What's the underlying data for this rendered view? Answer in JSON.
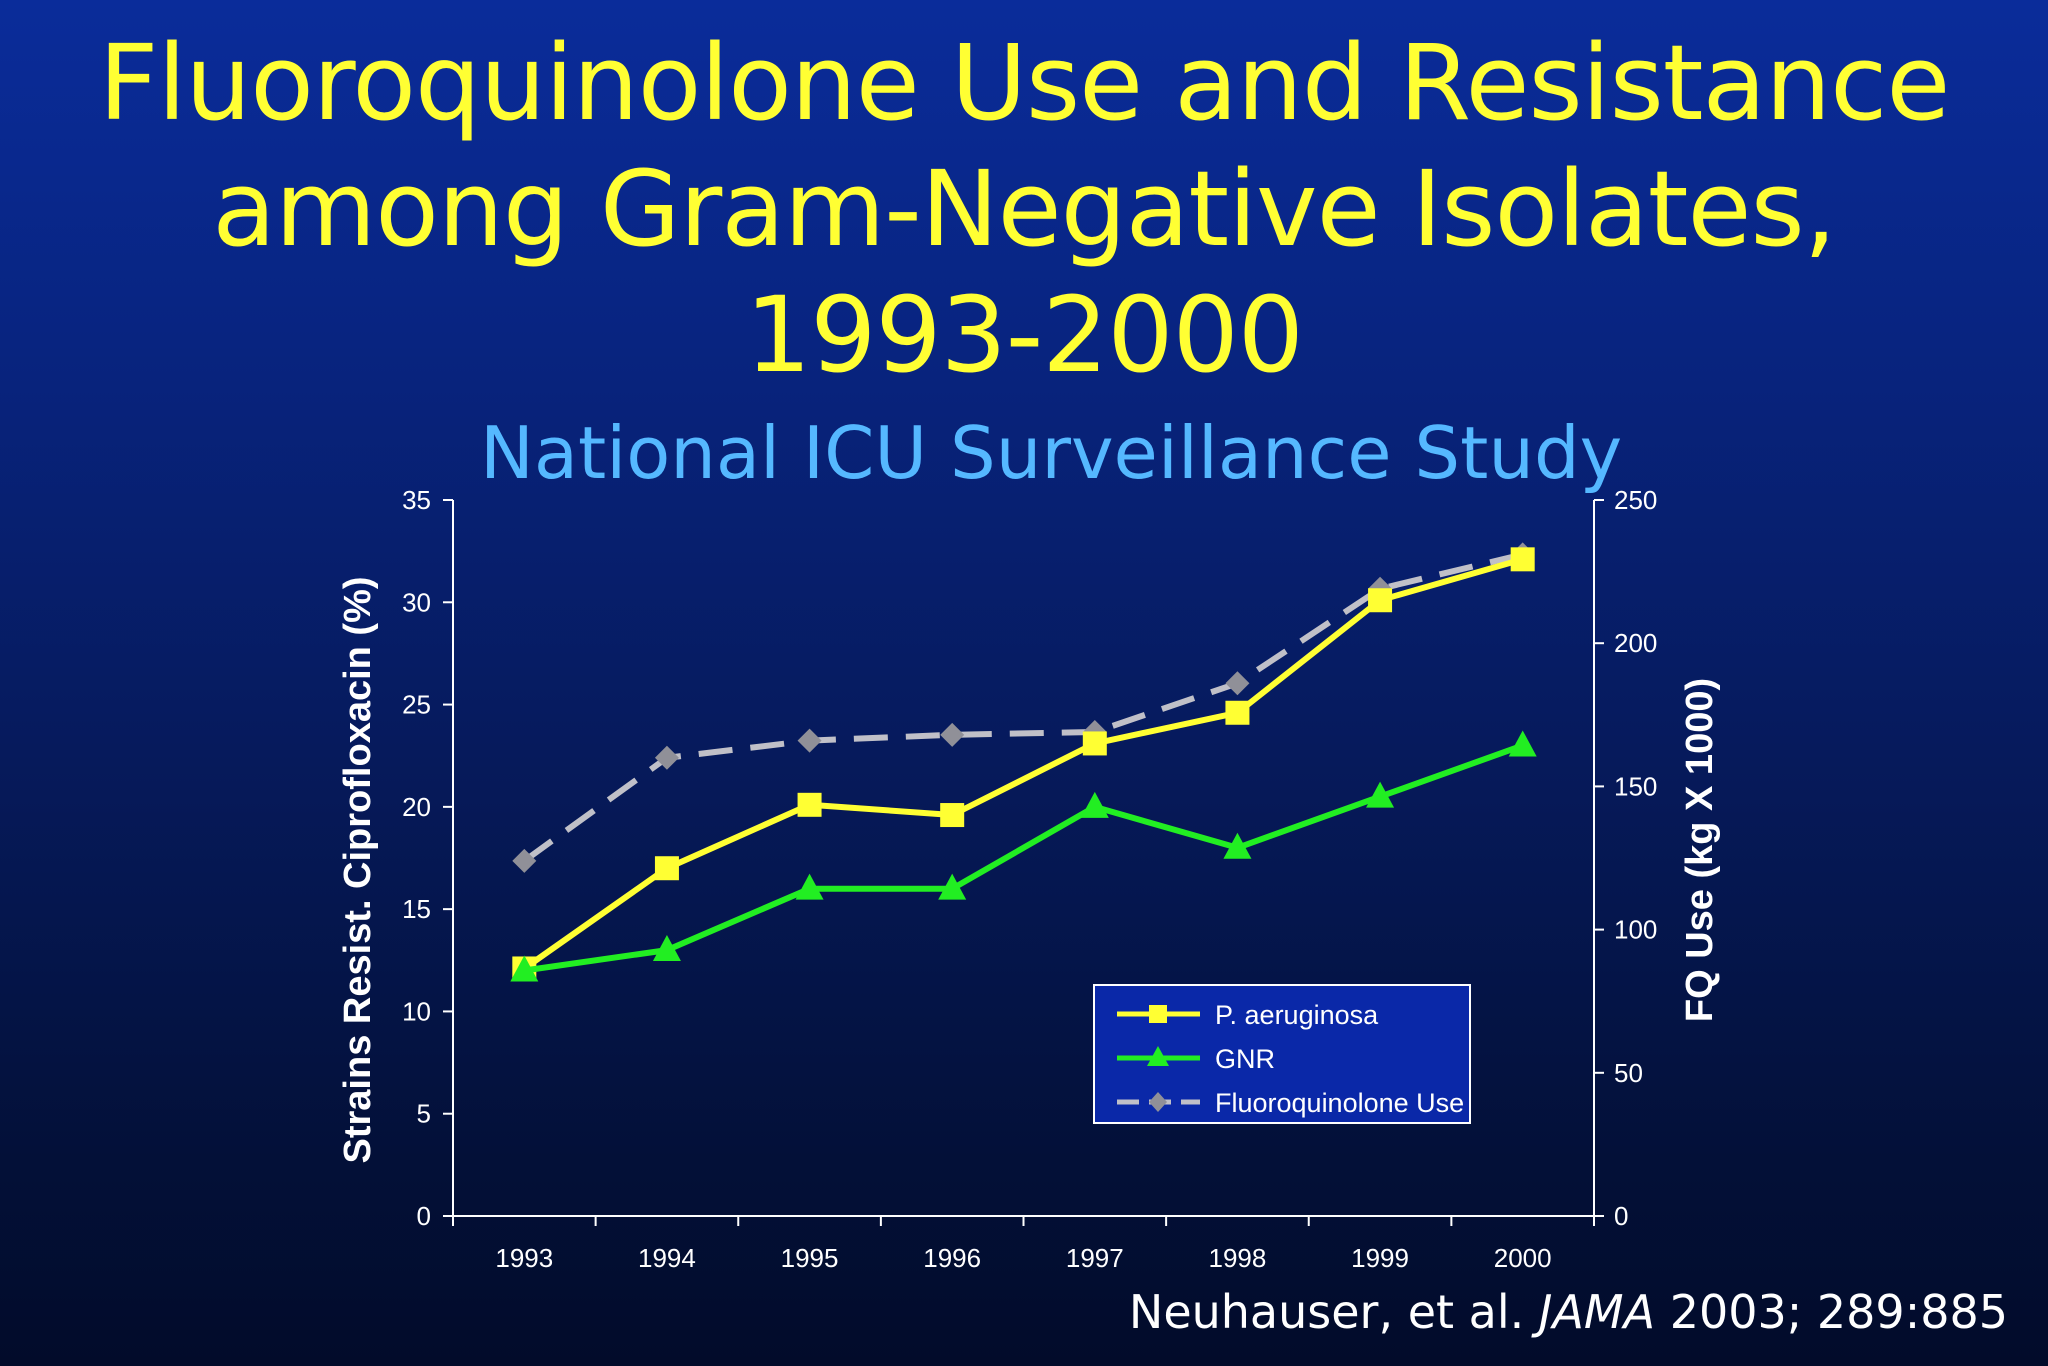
{
  "slide": {
    "title_lines": [
      "Fluoroquinolone Use and Resistance",
      "among Gram-Negative Isolates,",
      "1993-2000"
    ],
    "subtitle": "National ICU Surveillance Study",
    "citation": {
      "authors": "Neuhauser, et al.",
      "journal": "JAMA",
      "details": "2003; 289:885"
    }
  },
  "colors": {
    "title": "#ffff33",
    "subtitle": "#55b8ff",
    "p_aeruginosa": "#ffff33",
    "gnr": "#22ee22",
    "fq_use": "#c0c0c8",
    "fq_marker": "#909098",
    "axis": "#ffffff",
    "legend_bg": "#0a28a8"
  },
  "chart_data": {
    "type": "line",
    "x": [
      "1993",
      "1994",
      "1995",
      "1996",
      "1997",
      "1998",
      "1999",
      "2000"
    ],
    "ylabel": "Strains Resist. Ciprofloxacin (%)",
    "y2label": "FQ Use (kg X 1000)",
    "ylim": [
      0,
      35
    ],
    "y2lim": [
      0,
      250
    ],
    "yticks": [
      "0",
      "5",
      "10",
      "15",
      "20",
      "25",
      "30",
      "35"
    ],
    "y2ticks": [
      "0",
      "50",
      "100",
      "150",
      "200",
      "250"
    ],
    "legend_position": "lower-right",
    "series": [
      {
        "name": "P. aeruginosa",
        "axis": "left",
        "marker": "square",
        "dash": false,
        "values": [
          12.1,
          17.0,
          20.1,
          19.6,
          23.1,
          24.6,
          30.1,
          32.1
        ]
      },
      {
        "name": "GNR",
        "axis": "left",
        "marker": "triangle",
        "dash": false,
        "values": [
          12.0,
          13.0,
          16.0,
          16.0,
          20.0,
          18.0,
          20.5,
          23.0
        ]
      },
      {
        "name": "Fluoroquinolone Use",
        "axis": "right",
        "marker": "diamond",
        "dash": true,
        "values": [
          124,
          160,
          166,
          168,
          169,
          186,
          219,
          231
        ]
      }
    ]
  }
}
